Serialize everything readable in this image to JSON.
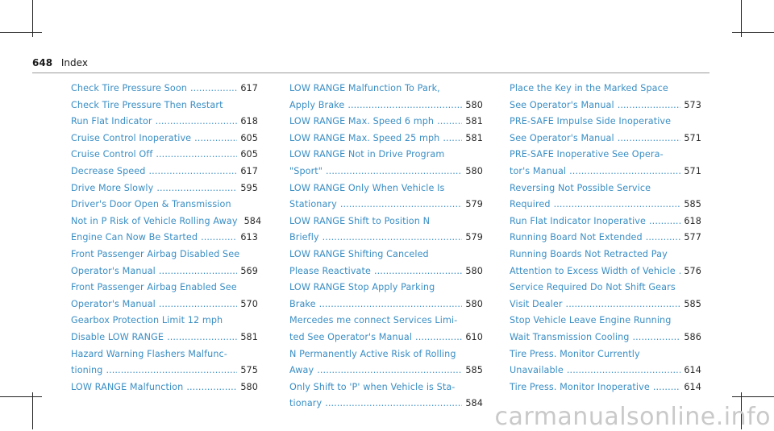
{
  "header": {
    "page_number": "648",
    "section": "Index"
  },
  "watermark": "carmanualsonline.info",
  "colors": {
    "link": "#3a8ec4",
    "page_ref": "#2a2a2a",
    "rule": "#9a9a9a"
  },
  "columns": [
    [
      {
        "lines": [
          "Check Tire Pressure Soon"
        ],
        "page": "617"
      },
      {
        "lines": [
          "Check Tire Pressure Then Restart",
          "Run Flat Indicator"
        ],
        "page": "618"
      },
      {
        "lines": [
          "Cruise Control Inoperative"
        ],
        "page": "605"
      },
      {
        "lines": [
          "Cruise Control Off"
        ],
        "page": "605"
      },
      {
        "lines": [
          "Decrease Speed"
        ],
        "page": "617"
      },
      {
        "lines": [
          "Drive More Slowly"
        ],
        "page": "595"
      },
      {
        "lines": [
          "Driver's Door Open & Transmission",
          "Not in P Risk of Vehicle Rolling Away"
        ],
        "page": "584"
      },
      {
        "lines": [
          "Engine Can Now Be Started"
        ],
        "page": "613"
      },
      {
        "lines": [
          "Front Passenger Airbag Disabled See",
          "Operator's Manual"
        ],
        "page": "569"
      },
      {
        "lines": [
          "Front Passenger Airbag Enabled See",
          "Operator's Manual"
        ],
        "page": "570"
      },
      {
        "lines": [
          "Gearbox Protection Limit 12 mph",
          "Disable LOW RANGE"
        ],
        "page": "581"
      },
      {
        "lines": [
          "Hazard Warning Flashers Malfunc-",
          "tioning"
        ],
        "page": "575"
      },
      {
        "lines": [
          "LOW RANGE Malfunction"
        ],
        "page": "580"
      }
    ],
    [
      {
        "lines": [
          "LOW RANGE Malfunction To Park,",
          "Apply Brake"
        ],
        "page": "580"
      },
      {
        "lines": [
          "LOW RANGE Max. Speed 6 mph"
        ],
        "page": "581"
      },
      {
        "lines": [
          "LOW RANGE Max. Speed 25 mph"
        ],
        "page": "581"
      },
      {
        "lines": [
          "LOW RANGE Not in Drive Program",
          "\"Sport\""
        ],
        "page": "580"
      },
      {
        "lines": [
          "LOW RANGE Only When Vehicle Is",
          "Stationary"
        ],
        "page": "579"
      },
      {
        "lines": [
          "LOW RANGE Shift to Position N",
          "Briefly"
        ],
        "page": "579"
      },
      {
        "lines": [
          "LOW RANGE Shifting Canceled",
          "Please Reactivate"
        ],
        "page": "580"
      },
      {
        "lines": [
          "LOW RANGE Stop Apply Parking",
          "Brake"
        ],
        "page": "580"
      },
      {
        "lines": [
          "Mercedes me connect Services Limi-",
          "ted See Operator's Manual"
        ],
        "page": "610"
      },
      {
        "lines": [
          "N Permanently Active Risk of Rolling",
          "Away"
        ],
        "page": "585"
      },
      {
        "lines": [
          "Only Shift to 'P' when Vehicle is Sta-",
          "tionary"
        ],
        "page": "584"
      }
    ],
    [
      {
        "lines": [
          "Place the Key in the Marked Space",
          "See Operator's Manual"
        ],
        "page": "573"
      },
      {
        "lines": [
          "PRE-SAFE Impulse Side Inoperative",
          "See Operator's Manual"
        ],
        "page": "571"
      },
      {
        "lines": [
          "PRE-SAFE Inoperative See Opera-",
          "tor's Manual"
        ],
        "page": "571"
      },
      {
        "lines": [
          "Reversing Not Possible Service",
          "Required"
        ],
        "page": "585"
      },
      {
        "lines": [
          "Run Flat Indicator Inoperative"
        ],
        "page": "618"
      },
      {
        "lines": [
          "Running Board Not Extended"
        ],
        "page": "577"
      },
      {
        "lines": [
          "Running Boards Not Retracted Pay",
          "Attention to Excess Width of Vehicle"
        ],
        "page": "576"
      },
      {
        "lines": [
          "Service Required Do Not Shift Gears",
          "Visit Dealer"
        ],
        "page": "585"
      },
      {
        "lines": [
          "Stop Vehicle Leave Engine Running",
          "Wait Transmission Cooling"
        ],
        "page": "586"
      },
      {
        "lines": [
          "Tire Press. Monitor Currently",
          "Unavailable"
        ],
        "page": "614"
      },
      {
        "lines": [
          "Tire Press. Monitor Inoperative"
        ],
        "page": "614"
      }
    ]
  ]
}
